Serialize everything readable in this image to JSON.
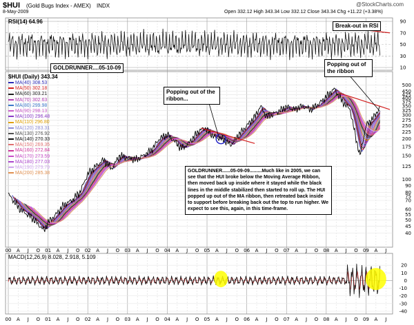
{
  "header": {
    "symbol": "$HUI",
    "name": "(Gold Bugs Index - AMEX)",
    "exchange": "INDX",
    "date": "8-May-2009",
    "quote": "Open 332.12  High 343.34  Low 332.12  Close 343.34  Chg +11.22 (+3.38%)",
    "credit": "@StockCharts.com"
  },
  "rsi": {
    "label": "RSI(14) 64.96",
    "ticks": [
      "70",
      "50",
      "30",
      "10",
      "90"
    ],
    "note": "Break-out in RSI",
    "credit_box": "GOLDRUNNER....05-10-09"
  },
  "legend": {
    "title": "$HUI (Daily) 343.34",
    "items": [
      {
        "label": "MA(40) 308.53",
        "color": "#2b2bb5"
      },
      {
        "label": "MA(50) 302.18",
        "color": "#d21e1e"
      },
      {
        "label": "MA(60) 303.21",
        "color": "#1e1e1e"
      },
      {
        "label": "MA(70) 302.63",
        "color": "#b03cb0"
      },
      {
        "label": "MA(80) 299.98",
        "color": "#3c78c8"
      },
      {
        "label": "MA(90) 298.13",
        "color": "#c85ac8"
      },
      {
        "label": "MA(100) 296.48",
        "color": "#8c3cc8"
      },
      {
        "label": "MA(110) 296.80",
        "color": "#e0a000"
      },
      {
        "label": "MA(120) 283.31",
        "color": "#8c8cd2"
      },
      {
        "label": "MA(130) 276.92",
        "color": "#505050"
      },
      {
        "label": "MA(140) 270.33",
        "color": "#101010"
      },
      {
        "label": "MA(150) 269.35",
        "color": "#e07070"
      },
      {
        "label": "MA(160) 272.84",
        "color": "#cc3399"
      },
      {
        "label": "MA(170) 273.59",
        "color": "#c84ec8"
      },
      {
        "label": "MA(180) 277.03",
        "color": "#aa44cc"
      },
      {
        "label": "MA(190) 279.79",
        "color": "#d2a8f0"
      },
      {
        "label": "MA(200) 285.38",
        "color": "#e09050"
      }
    ]
  },
  "annotations": {
    "pop1": "Popping out of the ribbon...",
    "pop2": "Popping out of the ribbon",
    "comment": "GOLDRUNNER......05-09-09.........Much like in 2005, we can see that the HUI broke below the Moving Average Ribbon, then moved back up inside where it stayed while the black lines in the middle stabilized then started to roll up.  The HUI popped up out of the MA ribbon, then retreated back inside to support before breaking back out the top to run higher.  We expect to see this, again, in this time-frame."
  },
  "macd": {
    "label": "MACD(12,26,9) 8.028, 2.918, 5.109"
  },
  "chart_data": {
    "type": "line",
    "title": "$HUI (Gold Bugs Index - AMEX) INDX",
    "price_axis": {
      "scale": "log",
      "ylim": [
        35,
        560
      ],
      "ticks": [
        40,
        45,
        50,
        55,
        60,
        70,
        75,
        80,
        90,
        100,
        125,
        150,
        175,
        200,
        225,
        250,
        275,
        300,
        325,
        350,
        375,
        400,
        425,
        450,
        500
      ]
    },
    "time_axis": {
      "range": [
        2000.0,
        2009.6
      ],
      "labels": [
        "00",
        "A",
        "J",
        "O",
        "01",
        "A",
        "J",
        "O",
        "02",
        "A",
        "J",
        "O",
        "03",
        "A",
        "J",
        "O",
        "04",
        "A",
        "J",
        "O",
        "05",
        "A",
        "J",
        "O",
        "06",
        "A",
        "J",
        "O",
        "07",
        "A",
        "J",
        "O",
        "08",
        "A",
        "J",
        "O",
        "09",
        "A",
        "J"
      ]
    },
    "series": [
      {
        "name": "HUI close",
        "x": [
          2000.0,
          2000.3,
          2000.6,
          2000.9,
          2001.0,
          2001.2,
          2001.4,
          2001.6,
          2001.8,
          2002.0,
          2002.2,
          2002.4,
          2002.6,
          2002.8,
          2003.0,
          2003.2,
          2003.4,
          2003.6,
          2003.8,
          2004.0,
          2004.2,
          2004.35,
          2004.5,
          2004.8,
          2004.95,
          2005.2,
          2005.4,
          2005.6,
          2005.8,
          2006.0,
          2006.2,
          2006.35,
          2006.5,
          2006.8,
          2007.0,
          2007.2,
          2007.4,
          2007.6,
          2007.8,
          2008.0,
          2008.2,
          2008.4,
          2008.6,
          2008.75,
          2008.85,
          2009.0,
          2009.2,
          2009.35
        ],
        "values": [
          78,
          60,
          52,
          42,
          48,
          55,
          65,
          70,
          80,
          110,
          125,
          140,
          120,
          150,
          145,
          140,
          150,
          165,
          200,
          215,
          190,
          170,
          180,
          230,
          240,
          205,
          200,
          180,
          215,
          250,
          290,
          350,
          290,
          320,
          345,
          330,
          350,
          330,
          360,
          410,
          470,
          380,
          330,
          200,
          150,
          250,
          290,
          343
        ]
      },
      {
        "name": "RSI(14)",
        "last": 64.96,
        "ylim": [
          10,
          90
        ]
      },
      {
        "name": "MACD(12,26,9)",
        "values": [
          8.028,
          2.918,
          5.109
        ],
        "ylim": [
          -40,
          30
        ]
      }
    ]
  }
}
